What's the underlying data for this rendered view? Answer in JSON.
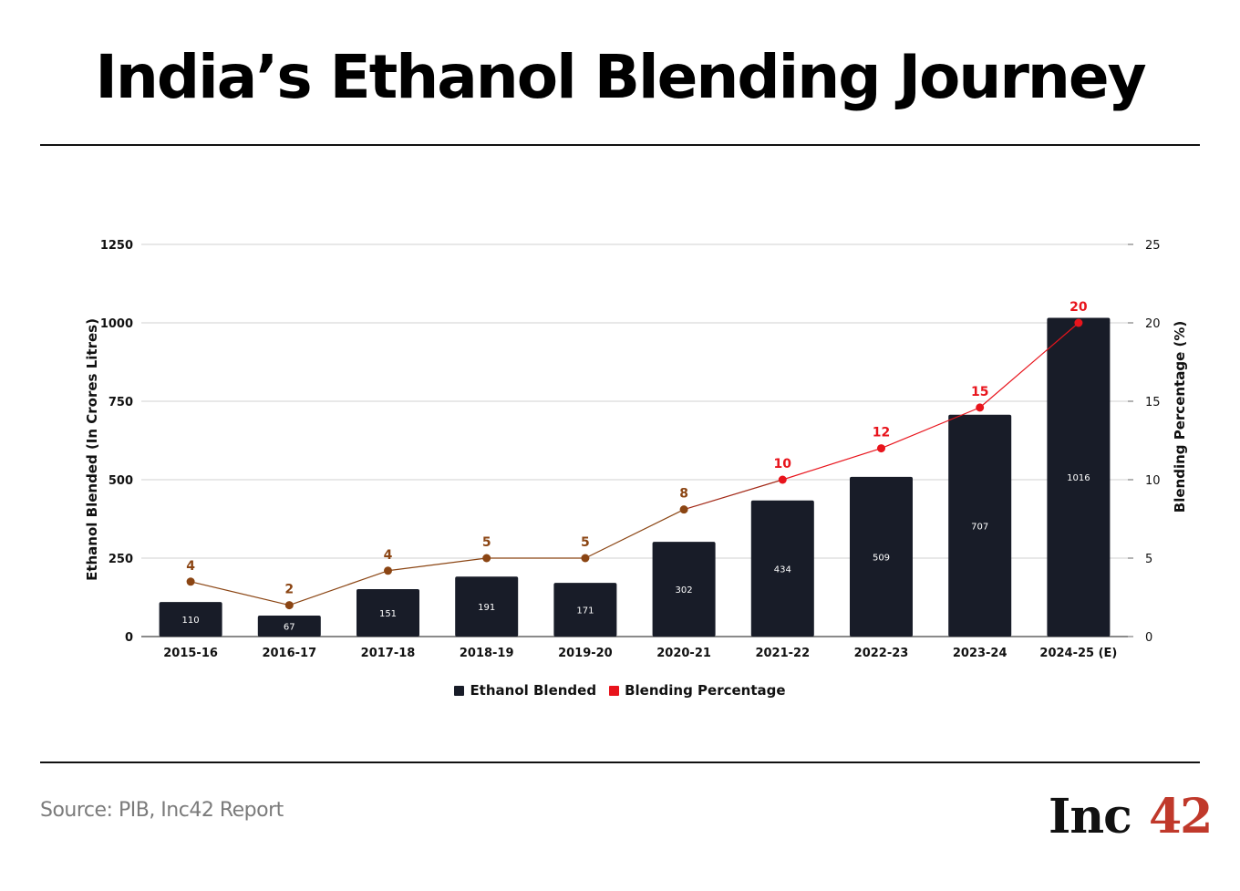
{
  "page": {
    "title": "India’s Ethanol Blending Journey",
    "source": "Source: PIB, Inc42 Report",
    "logo_text": "Inc",
    "logo_number": "42"
  },
  "colors": {
    "bar": "#181c28",
    "line_start": "#8b4513",
    "line_end": "#e8141c",
    "grid": "#d0d0d0",
    "logo_accent": "#c0392b"
  },
  "chart_data": {
    "type": "bar",
    "title": "",
    "categories": [
      "2015-16",
      "2016-17",
      "2017-18",
      "2018-19",
      "2019-20",
      "2020-21",
      "2021-22",
      "2022-23",
      "2023-24",
      "2024-25 (E)"
    ],
    "series": [
      {
        "name": "Ethanol Blended",
        "type": "bar",
        "axis": "left",
        "values": [
          110,
          67,
          151,
          191,
          171,
          302,
          434,
          509,
          707,
          1016
        ]
      },
      {
        "name": "Blending Percentage",
        "type": "line",
        "axis": "right",
        "values": [
          3.5,
          2.0,
          4.2,
          5.0,
          5.0,
          8.1,
          10.0,
          12.0,
          14.6,
          20.0
        ],
        "labels": [
          "4",
          "2",
          "4",
          "5",
          "5",
          "8",
          "10",
          "12",
          "15",
          "20"
        ]
      }
    ],
    "ylabel": "Ethanol Blended (In Crores Litres)",
    "y2label": "Blending Percentage (%)",
    "ylim": [
      0,
      1250
    ],
    "y2lim": [
      0,
      25
    ],
    "yticks": [
      0,
      250,
      500,
      750,
      1000,
      1250
    ],
    "y2ticks": [
      0,
      5,
      10,
      15,
      20,
      25
    ],
    "grid": true,
    "legend": "bottom-center"
  }
}
